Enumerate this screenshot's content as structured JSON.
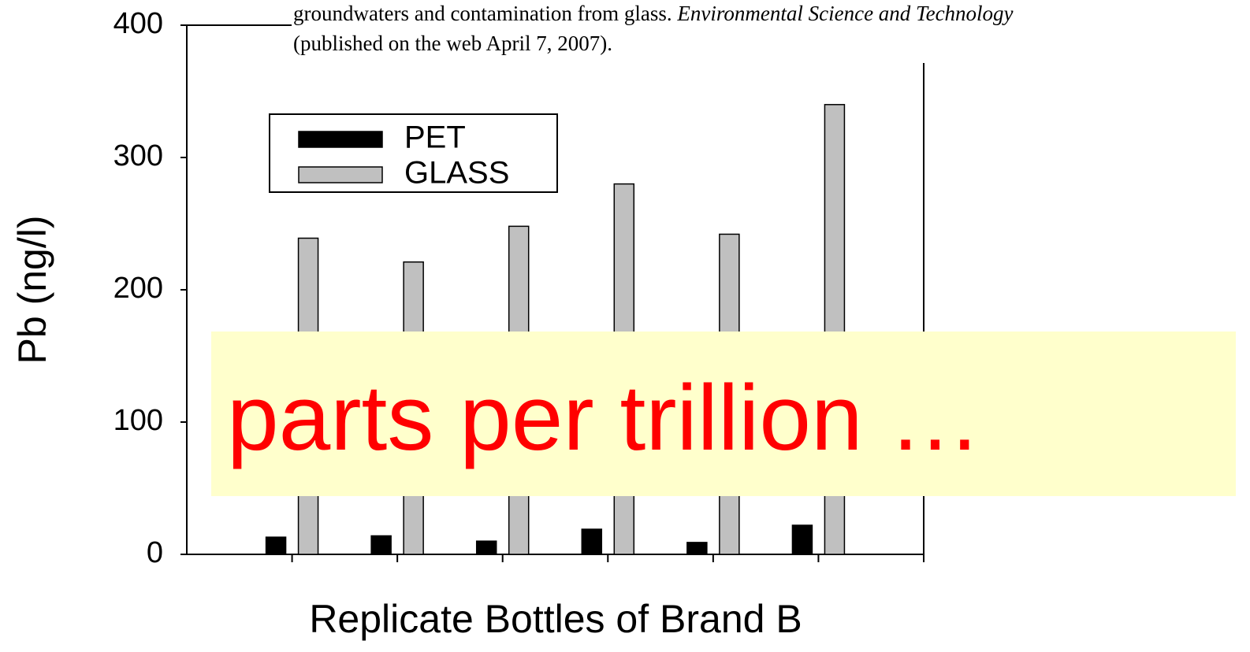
{
  "chart_data": {
    "type": "bar",
    "y_label": "Pb (ng/l)",
    "x_label": "Replicate Bottles of Brand B",
    "categories": [
      null,
      null,
      null,
      null,
      null,
      null
    ],
    "series": [
      {
        "name": "PET",
        "color": "#000000",
        "values": [
          13,
          14,
          10,
          19,
          9,
          22
        ]
      },
      {
        "name": "GLASS",
        "color": "#c0c0c0",
        "values": [
          239,
          221,
          248,
          280,
          242,
          340
        ]
      }
    ],
    "ylim": [
      0,
      400
    ],
    "yticks": [
      0,
      100,
      200,
      300,
      400
    ],
    "legend": "upper left",
    "annotations": [
      "groundwaters and contamination from glass.",
      "Environmental Science and Technology",
      "(published on the web April 7, 2007)."
    ],
    "callout": "parts per trillion …"
  }
}
